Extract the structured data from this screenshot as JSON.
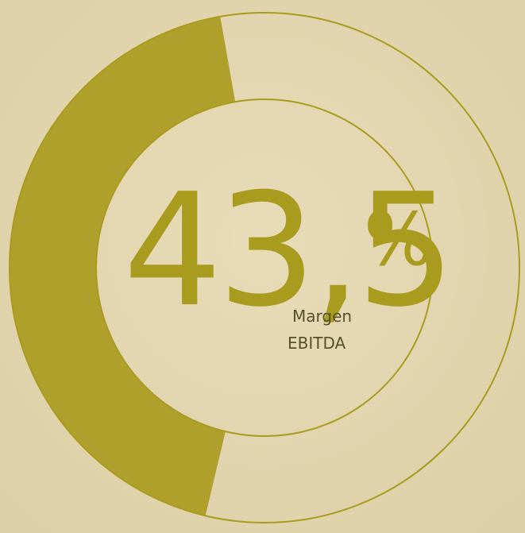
{
  "chart_data": {
    "type": "donut",
    "values": [
      43.5
    ],
    "value_labels": [
      "43,5"
    ],
    "unit": "%",
    "label_lines": [
      "Margen",
      "EBITDA"
    ],
    "color": "#a99b1e"
  }
}
